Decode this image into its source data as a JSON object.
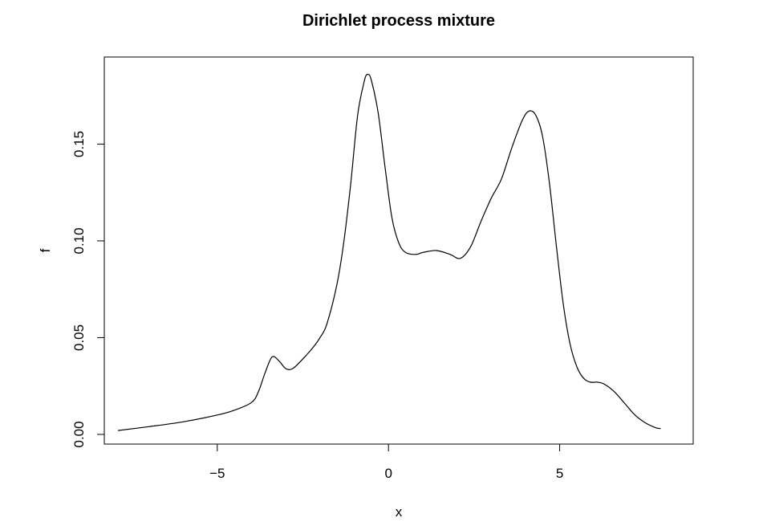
{
  "chart_data": {
    "type": "line",
    "title": "Dirichlet process mixture",
    "xlabel": "x",
    "ylabel": "f",
    "xlim": [
      -8.3,
      8.9
    ],
    "ylim": [
      -0.005,
      0.195
    ],
    "xticks": [
      {
        "value": -5,
        "label": "−5"
      },
      {
        "value": 0,
        "label": "0"
      },
      {
        "value": 5,
        "label": "5"
      }
    ],
    "yticks": [
      {
        "value": 0.0,
        "label": "0.00"
      },
      {
        "value": 0.05,
        "label": "0.05"
      },
      {
        "value": 0.1,
        "label": "0.10"
      },
      {
        "value": 0.15,
        "label": "0.15"
      }
    ],
    "grid": false,
    "series": [
      {
        "x": [
          -7.9,
          -7.0,
          -6.0,
          -5.0,
          -4.5,
          -4.0,
          -3.8,
          -3.6,
          -3.4,
          -3.2,
          -3.0,
          -2.8,
          -2.5,
          -2.2,
          -2.0,
          -1.8,
          -1.5,
          -1.3,
          -1.1,
          -0.9,
          -0.7,
          -0.6,
          -0.5,
          -0.3,
          -0.1,
          0.1,
          0.3,
          0.5,
          0.8,
          1.0,
          1.4,
          1.8,
          2.1,
          2.4,
          2.7,
          3.0,
          3.3,
          3.6,
          3.9,
          4.1,
          4.3,
          4.5,
          4.7,
          4.9,
          5.1,
          5.3,
          5.5,
          5.7,
          5.9,
          6.1,
          6.3,
          6.6,
          6.9,
          7.2,
          7.5,
          7.8,
          7.95
        ],
        "y": [
          0.002,
          0.004,
          0.0065,
          0.01,
          0.0125,
          0.0165,
          0.022,
          0.032,
          0.04,
          0.038,
          0.034,
          0.034,
          0.039,
          0.045,
          0.05,
          0.057,
          0.078,
          0.1,
          0.13,
          0.165,
          0.183,
          0.186,
          0.183,
          0.166,
          0.138,
          0.112,
          0.099,
          0.094,
          0.093,
          0.094,
          0.095,
          0.093,
          0.091,
          0.097,
          0.11,
          0.122,
          0.132,
          0.148,
          0.162,
          0.167,
          0.165,
          0.154,
          0.13,
          0.098,
          0.068,
          0.047,
          0.035,
          0.029,
          0.027,
          0.027,
          0.026,
          0.022,
          0.016,
          0.01,
          0.006,
          0.0035,
          0.003
        ]
      }
    ]
  }
}
